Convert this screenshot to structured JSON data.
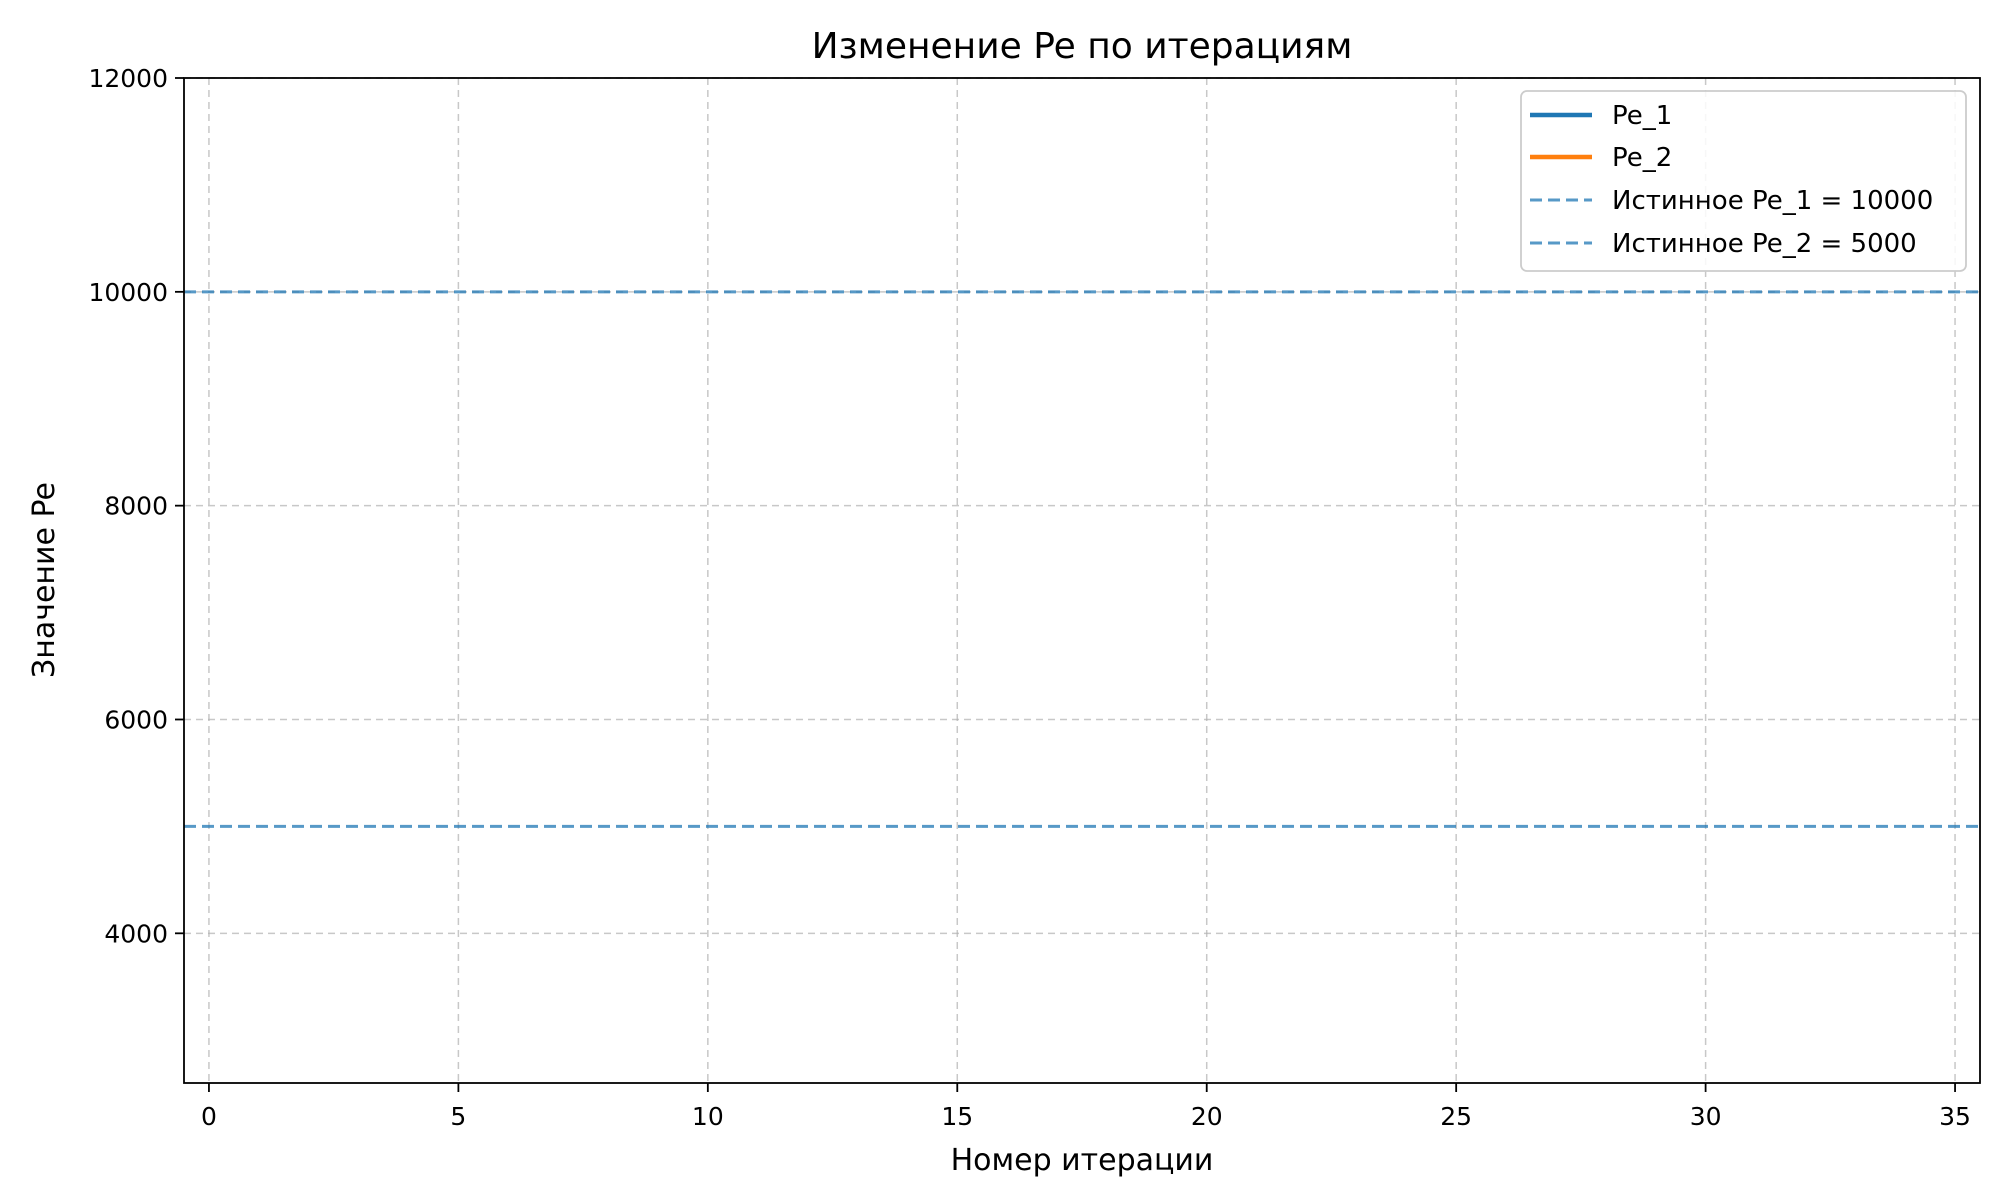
{
  "chart_data": {
    "type": "line",
    "title": "Изменение Pe по итерациям",
    "xlabel": "Номер итерации",
    "ylabel": "Значение Pe",
    "xlim": [
      -0.5,
      35.5
    ],
    "ylim": [
      2600,
      12000
    ],
    "xticks": [
      0,
      5,
      10,
      15,
      20,
      25,
      30,
      35
    ],
    "yticks": [
      4000,
      6000,
      8000,
      10000,
      12000
    ],
    "grid": true,
    "legend_position": "top-right",
    "series": [
      {
        "name": "Pe_1",
        "style": "solid",
        "color": "#1f77b4",
        "x": [],
        "values": []
      },
      {
        "name": "Pe_2",
        "style": "solid",
        "color": "#ff7f0e",
        "x": [],
        "values": []
      }
    ],
    "reference_lines": [
      {
        "label": "Истинное Pe_1 = 10000",
        "y": 10000,
        "style": "dashed",
        "color": "#1f77b4"
      },
      {
        "label": "Истинное Pe_2 = 5000",
        "y": 5000,
        "style": "dashed",
        "color": "#1f77b4"
      }
    ]
  }
}
